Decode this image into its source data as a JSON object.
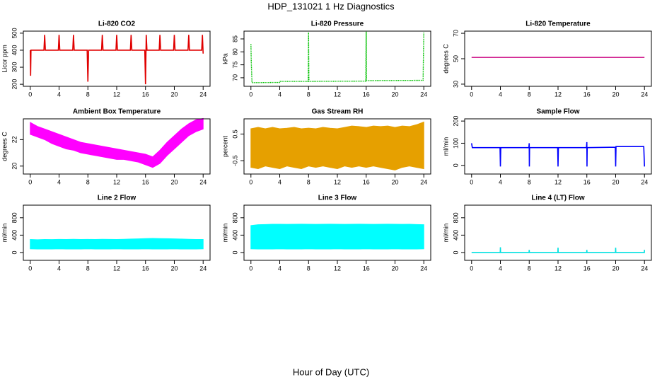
{
  "title": "HDP_131021  1 Hz Diagnostics",
  "xlabel": "Hour of Day (UTC)",
  "chart_data": [
    {
      "type": "line",
      "title": "Li-820 CO2",
      "ylabel": "Licor ppm",
      "color": "#e00000",
      "x": [
        0,
        0.05,
        0.1,
        1.9,
        2,
        2.1,
        3.9,
        4,
        4.1,
        5.9,
        6,
        6.1,
        7.9,
        8,
        8.1,
        9.9,
        10,
        10.1,
        11.9,
        12,
        12.1,
        13.9,
        14,
        14.1,
        15.9,
        16,
        16.1,
        16.2,
        17.9,
        18,
        18.1,
        19.9,
        20,
        20.1,
        21.9,
        22,
        22.1,
        23.8,
        23.9,
        24
      ],
      "values": [
        400,
        250,
        400,
        400,
        490,
        400,
        400,
        490,
        400,
        400,
        490,
        400,
        400,
        215,
        400,
        400,
        490,
        400,
        400,
        490,
        400,
        400,
        490,
        400,
        400,
        200,
        490,
        400,
        400,
        490,
        400,
        400,
        490,
        400,
        400,
        490,
        400,
        400,
        490,
        380
      ],
      "xlim": [
        -0.96,
        24.96
      ],
      "xticks": [
        0,
        4,
        8,
        12,
        16,
        20,
        24
      ],
      "ylim": [
        188,
        512
      ],
      "yticks": [
        200,
        300,
        400,
        500
      ]
    },
    {
      "type": "line",
      "title": "Li-820 Pressure",
      "ylabel": "kPa",
      "color": "#00c000",
      "dash": true,
      "x": [
        0,
        0.05,
        0.15,
        4,
        4.05,
        7.95,
        8,
        8.05,
        15.95,
        16,
        16.05,
        23.9,
        24
      ],
      "values": [
        83,
        76,
        68.1,
        68.2,
        68.6,
        68.6,
        87.5,
        68.6,
        68.7,
        87.8,
        68.9,
        69,
        87.5
      ],
      "xlim": [
        -0.96,
        24.96
      ],
      "xticks": [
        0,
        4,
        8,
        12,
        16,
        20,
        24
      ],
      "ylim": [
        66.7,
        88
      ],
      "yticks": [
        70,
        75,
        80,
        85
      ]
    },
    {
      "type": "line",
      "title": "Li-820 Temperature",
      "ylabel": "degrees C",
      "color": "#d0208f",
      "x": [
        0,
        24
      ],
      "values": [
        51,
        51
      ],
      "xlim": [
        -0.96,
        24.96
      ],
      "xticks": [
        0,
        4,
        8,
        12,
        16,
        20,
        24
      ],
      "ylim": [
        28.3,
        71.7
      ],
      "yticks": [
        30,
        50,
        70
      ]
    },
    {
      "type": "band",
      "title": "Ambient Box Temperature",
      "ylabel": "degrees C",
      "color": "#ff00ff",
      "x": [
        0,
        1,
        2,
        3,
        4,
        5,
        6,
        7,
        8,
        9,
        10,
        11,
        12,
        13,
        14,
        15,
        16,
        17,
        18,
        19,
        20,
        21,
        22,
        23,
        24
      ],
      "upper": [
        23.3,
        23.0,
        22.8,
        22.6,
        22.4,
        22.2,
        22.0,
        21.8,
        21.7,
        21.6,
        21.5,
        21.4,
        21.3,
        21.2,
        21.1,
        21.0,
        20.9,
        20.7,
        21.2,
        21.8,
        22.3,
        22.8,
        23.2,
        23.5,
        23.6
      ],
      "lower": [
        22.4,
        22.2,
        22.0,
        21.7,
        21.5,
        21.3,
        21.2,
        21.0,
        20.9,
        20.8,
        20.7,
        20.6,
        20.5,
        20.5,
        20.4,
        20.3,
        20.1,
        19.9,
        20.2,
        20.8,
        21.3,
        21.8,
        22.3,
        22.6,
        22.8
      ],
      "xlim": [
        -0.96,
        24.96
      ],
      "xticks": [
        0,
        4,
        8,
        12,
        16,
        20,
        24
      ],
      "ylim": [
        19.4,
        23.57
      ],
      "yticks": [
        20,
        22
      ]
    },
    {
      "type": "band",
      "title": "Gas Stream RH",
      "ylabel": "percent",
      "color": "#e6a000",
      "x": [
        0,
        1,
        2,
        3,
        4,
        5,
        6,
        7,
        8,
        9,
        10,
        11,
        12,
        13,
        14,
        15,
        16,
        17,
        18,
        19,
        20,
        21,
        22,
        23,
        24
      ],
      "upper": [
        0.7,
        0.75,
        0.7,
        0.75,
        0.7,
        0.72,
        0.75,
        0.7,
        0.72,
        0.7,
        0.75,
        0.72,
        0.7,
        0.75,
        0.8,
        0.78,
        0.75,
        0.8,
        0.78,
        0.8,
        0.75,
        0.8,
        0.78,
        0.85,
        0.95
      ],
      "lower": [
        -0.75,
        -0.8,
        -0.7,
        -0.75,
        -0.8,
        -0.7,
        -0.75,
        -0.8,
        -0.7,
        -0.75,
        -0.7,
        -0.75,
        -0.8,
        -0.7,
        -0.75,
        -0.7,
        -0.75,
        -0.7,
        -0.75,
        -0.8,
        -0.85,
        -0.75,
        -0.7,
        -0.75,
        -0.8
      ],
      "xlim": [
        -0.96,
        24.96
      ],
      "xticks": [
        0,
        4,
        8,
        12,
        16,
        20,
        24
      ],
      "ylim": [
        -1.0,
        1.07
      ],
      "yticks": [
        -0.5,
        0.5
      ]
    },
    {
      "type": "line",
      "title": "Sample Flow",
      "ylabel": "ml/min",
      "color": "#0000ff",
      "x": [
        0,
        0.1,
        3.95,
        4,
        4.05,
        7.95,
        8,
        8.02,
        8.05,
        11.95,
        12,
        12.05,
        15.95,
        16,
        16.02,
        16.05,
        19.95,
        20,
        20.05,
        23.9,
        24
      ],
      "values": [
        100,
        80,
        80,
        -5,
        80,
        80,
        100,
        -5,
        80,
        80,
        -5,
        80,
        80,
        105,
        -5,
        80,
        82,
        -5,
        85,
        85,
        -5
      ],
      "xlim": [
        -0.96,
        24.96
      ],
      "xticks": [
        0,
        4,
        8,
        12,
        16,
        20,
        24
      ],
      "ylim": [
        -39,
        210
      ],
      "yticks": [
        0,
        100,
        200
      ]
    },
    {
      "type": "band",
      "title": "Line 2 Flow",
      "ylabel": "ml/min",
      "color": "#00ffff",
      "x": [
        0,
        1,
        2,
        3,
        4,
        5,
        6,
        7,
        8,
        9,
        10,
        11,
        12,
        13,
        14,
        15,
        16,
        17,
        18,
        19,
        20,
        21,
        22,
        23,
        24
      ],
      "upper": [
        300,
        295,
        300,
        298,
        302,
        300,
        305,
        300,
        302,
        300,
        305,
        302,
        300,
        305,
        310,
        315,
        320,
        325,
        320,
        318,
        315,
        310,
        305,
        300,
        300
      ],
      "lower": [
        85,
        80,
        82,
        80,
        85,
        80,
        82,
        80,
        85,
        80,
        82,
        80,
        85,
        80,
        82,
        80,
        85,
        80,
        82,
        80,
        85,
        80,
        82,
        80,
        85
      ],
      "xlim": [
        -0.96,
        24.96
      ],
      "xticks": [
        0,
        4,
        8,
        12,
        16,
        20,
        24
      ],
      "ylim": [
        -180,
        1090
      ],
      "yticks": [
        0,
        400,
        800
      ]
    },
    {
      "type": "band",
      "title": "Line 3 Flow",
      "ylabel": "ml/min",
      "color": "#00ffff",
      "x": [
        0,
        1,
        2,
        3,
        4,
        5,
        6,
        7,
        8,
        9,
        10,
        11,
        12,
        13,
        14,
        15,
        16,
        17,
        18,
        19,
        20,
        21,
        22,
        23,
        24
      ],
      "upper": [
        620,
        640,
        645,
        650,
        650,
        648,
        650,
        652,
        650,
        648,
        650,
        652,
        650,
        648,
        650,
        652,
        650,
        648,
        650,
        652,
        650,
        648,
        650,
        645,
        640
      ],
      "lower": [
        85,
        80,
        82,
        80,
        85,
        80,
        82,
        80,
        85,
        80,
        82,
        80,
        85,
        80,
        82,
        80,
        85,
        80,
        82,
        80,
        85,
        80,
        82,
        80,
        85
      ],
      "xlim": [
        -0.96,
        24.96
      ],
      "xticks": [
        0,
        4,
        8,
        12,
        16,
        20,
        24
      ],
      "ylim": [
        -180,
        1090
      ],
      "yticks": [
        0,
        400,
        800
      ]
    },
    {
      "type": "line",
      "title": "Line 4 (LT) Flow",
      "ylabel": "ml/min",
      "color": "#00e0e0",
      "x": [
        0,
        3.98,
        4,
        4.02,
        7.98,
        8,
        8.02,
        11.98,
        12,
        12.02,
        15.98,
        16,
        16.02,
        19.98,
        20,
        20.02,
        23.98,
        24
      ],
      "values": [
        0,
        0,
        120,
        0,
        0,
        60,
        0,
        0,
        110,
        0,
        0,
        60,
        0,
        0,
        110,
        0,
        0,
        60
      ],
      "xlim": [
        -0.96,
        24.96
      ],
      "xticks": [
        0,
        4,
        8,
        12,
        16,
        20,
        24
      ],
      "ylim": [
        -180,
        1090
      ],
      "yticks": [
        0,
        400,
        800
      ]
    }
  ]
}
